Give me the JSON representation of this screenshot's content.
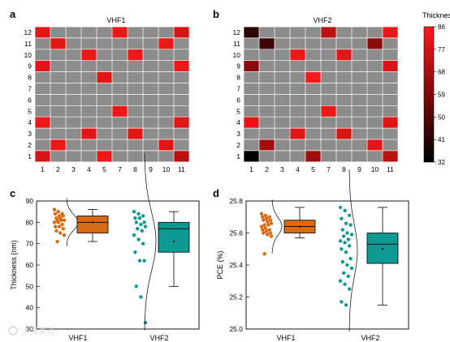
{
  "colors": {
    "grid_bg": "#8c8c8c",
    "cell_red": "#ff1a1a",
    "orange": "#d86a14",
    "teal": "#0e9a92"
  },
  "chart_data": [
    {
      "panel": "a",
      "type": "heatmap",
      "title": "VHF1",
      "x_ticks": [
        "1",
        "2",
        "3",
        "4",
        "5",
        "7",
        "8",
        "9",
        "10",
        "11"
      ],
      "y_ticks": [
        "12",
        "11",
        "10",
        "9",
        "8",
        "7",
        "6",
        "5",
        "4",
        "3",
        "2",
        "1"
      ],
      "cells": [
        {
          "col": "1",
          "row": "12",
          "value": 80
        },
        {
          "col": "7",
          "row": "12",
          "value": 82
        },
        {
          "col": "11",
          "row": "12",
          "value": 78
        },
        {
          "col": "2",
          "row": "11",
          "value": 80
        },
        {
          "col": "10",
          "row": "11",
          "value": 82
        },
        {
          "col": "4",
          "row": "10",
          "value": 82
        },
        {
          "col": "8",
          "row": "10",
          "value": 82
        },
        {
          "col": "1",
          "row": "9",
          "value": 80
        },
        {
          "col": "11",
          "row": "9",
          "value": 82
        },
        {
          "col": "5",
          "row": "8",
          "value": 80
        },
        {
          "col": "7",
          "row": "5",
          "value": 82
        },
        {
          "col": "1",
          "row": "4",
          "value": 82
        },
        {
          "col": "11",
          "row": "4",
          "value": 80
        },
        {
          "col": "4",
          "row": "3",
          "value": 80
        },
        {
          "col": "8",
          "row": "3",
          "value": 80
        },
        {
          "col": "2",
          "row": "2",
          "value": 82
        },
        {
          "col": "10",
          "row": "2",
          "value": 80
        },
        {
          "col": "1",
          "row": "1",
          "value": 78
        },
        {
          "col": "5",
          "row": "1",
          "value": 82
        },
        {
          "col": "11",
          "row": "1",
          "value": 72
        }
      ]
    },
    {
      "panel": "b",
      "type": "heatmap",
      "title": "VHF2",
      "x_ticks": [
        "1",
        "2",
        "3",
        "4",
        "5",
        "7",
        "8",
        "9",
        "10",
        "11"
      ],
      "y_ticks": [
        "12",
        "11",
        "10",
        "9",
        "8",
        "7",
        "6",
        "5",
        "4",
        "3",
        "2",
        "1"
      ],
      "colorbar": {
        "title": "Thickness (nm)",
        "ticks": [
          "86",
          "77",
          "68",
          "59",
          "50",
          "41",
          "32"
        ],
        "range": [
          32,
          86
        ]
      },
      "cells": [
        {
          "col": "1",
          "row": "12",
          "value": 42
        },
        {
          "col": "7",
          "row": "12",
          "value": 72
        },
        {
          "col": "11",
          "row": "12",
          "value": 82
        },
        {
          "col": "2",
          "row": "11",
          "value": 45
        },
        {
          "col": "10",
          "row": "11",
          "value": 62
        },
        {
          "col": "4",
          "row": "10",
          "value": 82
        },
        {
          "col": "8",
          "row": "10",
          "value": 80
        },
        {
          "col": "1",
          "row": "9",
          "value": 62
        },
        {
          "col": "11",
          "row": "9",
          "value": 78
        },
        {
          "col": "5",
          "row": "8",
          "value": 84
        },
        {
          "col": "7",
          "row": "5",
          "value": 82
        },
        {
          "col": "1",
          "row": "4",
          "value": 80
        },
        {
          "col": "11",
          "row": "4",
          "value": 80
        },
        {
          "col": "4",
          "row": "3",
          "value": 80
        },
        {
          "col": "8",
          "row": "3",
          "value": 78
        },
        {
          "col": "2",
          "row": "2",
          "value": 66
        },
        {
          "col": "10",
          "row": "2",
          "value": 80
        },
        {
          "col": "1",
          "row": "1",
          "value": 32
        },
        {
          "col": "5",
          "row": "1",
          "value": 66
        },
        {
          "col": "11",
          "row": "1",
          "value": 72
        }
      ]
    },
    {
      "panel": "c",
      "type": "box",
      "ylabel": "Thickness (nm)",
      "ylim": [
        30,
        90
      ],
      "y_ticks": [
        30,
        40,
        50,
        60,
        70,
        80,
        90
      ],
      "categories": [
        "VHF1",
        "VHF2"
      ],
      "series": [
        {
          "category": "VHF1",
          "points": [
            86,
            85,
            84,
            84,
            83,
            83,
            82,
            82,
            81,
            81,
            81,
            80,
            80,
            79,
            78,
            78,
            77,
            76,
            75,
            74,
            71
          ],
          "box": {
            "whisker_low": 71,
            "q1": 75,
            "median": 80,
            "q3": 83,
            "whisker_high": 86,
            "mean": 80
          }
        },
        {
          "category": "VHF2",
          "points": [
            85,
            84,
            83,
            82,
            82,
            80,
            80,
            79,
            78,
            77,
            76,
            74,
            72,
            70,
            66,
            62,
            62,
            50,
            45,
            33
          ],
          "box": {
            "whisker_low": 50,
            "q1": 66,
            "median": 77,
            "q3": 80,
            "whisker_high": 85,
            "mean": 71
          }
        }
      ]
    },
    {
      "panel": "d",
      "type": "box",
      "ylabel": "PCE (%)",
      "ylim": [
        25.0,
        25.8
      ],
      "y_ticks": [
        "25.0",
        "25.2",
        "25.4",
        "25.6",
        "25.8"
      ],
      "categories": [
        "VHF1",
        "VHF2"
      ],
      "series": [
        {
          "category": "VHF1",
          "points": [
            25.72,
            25.71,
            25.7,
            25.7,
            25.69,
            25.68,
            25.68,
            25.67,
            25.66,
            25.65,
            25.65,
            25.64,
            25.63,
            25.62,
            25.62,
            25.61,
            25.6,
            25.6,
            25.59,
            25.58,
            25.47
          ],
          "box": {
            "whisker_low": 25.57,
            "q1": 25.6,
            "median": 25.64,
            "q3": 25.68,
            "whisker_high": 25.76,
            "mean": 25.64
          }
        },
        {
          "category": "VHF2",
          "points": [
            25.76,
            25.74,
            25.71,
            25.69,
            25.66,
            25.65,
            25.62,
            25.6,
            25.59,
            25.58,
            25.56,
            25.55,
            25.54,
            25.52,
            25.5,
            25.48,
            25.44,
            25.42,
            25.4,
            25.38,
            25.35,
            25.33,
            25.3,
            25.28,
            25.25,
            25.17,
            25.15
          ],
          "box": {
            "whisker_low": 25.15,
            "q1": 25.41,
            "median": 25.53,
            "q3": 25.6,
            "whisker_high": 25.76,
            "mean": 25.5
          }
        }
      ]
    }
  ],
  "watermark": "大海资讯"
}
